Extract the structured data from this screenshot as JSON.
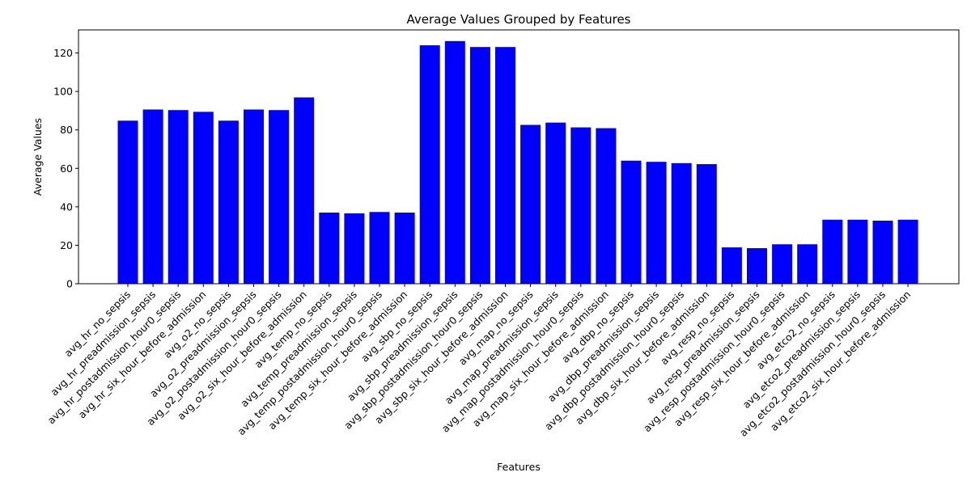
{
  "chart_data": {
    "type": "bar",
    "title": "Average Values Grouped by Features",
    "xlabel": "Features",
    "ylabel": "Average Values",
    "ylim": [
      0,
      132
    ],
    "yticks": [
      0,
      20,
      40,
      60,
      80,
      100,
      120
    ],
    "grid": false,
    "bar_color": "#0000ff",
    "categories": [
      "avg_hr_no_sepsis",
      "avg_hr_preadmission_sepsis",
      "avg_hr_postadmission_hour0_sepsis",
      "avg_hr_six_hour_before_admission",
      "avg_o2_no_sepsis",
      "avg_o2_preadmission_sepsis",
      "avg_o2_postadmission_hour0_sepsis",
      "avg_o2_six_hour_before_admission",
      "avg_temp_no_sepsis",
      "avg_temp_preadmission_sepsis",
      "avg_temp_postadmission_hour0_sepsis",
      "avg_temp_six_hour_before_admission",
      "avg_sbp_no_sepsis",
      "avg_sbp_preadmission_sepsis",
      "avg_sbp_postadmission_hour0_sepsis",
      "avg_sbp_six_hour_before_admission",
      "avg_map_no_sepsis",
      "avg_map_preadmission_sepsis",
      "avg_map_postadmission_hour0_sepsis",
      "avg_map_six_hour_before_admission",
      "avg_dbp_no_sepsis",
      "avg_dbp_preadmission_sepsis",
      "avg_dbp_postadmission_hour0_sepsis",
      "avg_dbp_six_hour_before_admission",
      "avg_resp_no_sepsis",
      "avg_resp_preadmission_sepsis",
      "avg_resp_postadmission_hour0_sepsis",
      "avg_resp_six_hour_before_admission",
      "avg_etco2_no_sepsis",
      "avg_etco2_preadmission_sepsis",
      "avg_etco2_postadmission_hour0_sepsis",
      "avg_etco2_six_hour_before_admission"
    ],
    "values": [
      84.8,
      90.6,
      90.3,
      89.4,
      84.8,
      90.6,
      90.3,
      96.9,
      37.0,
      36.6,
      37.3,
      37.0,
      124.0,
      126.2,
      123.1,
      123.1,
      82.6,
      83.8,
      81.3,
      80.9,
      64.0,
      63.4,
      62.7,
      62.2,
      18.9,
      18.5,
      20.5,
      20.5,
      33.3,
      33.3,
      32.8,
      33.3
    ]
  }
}
